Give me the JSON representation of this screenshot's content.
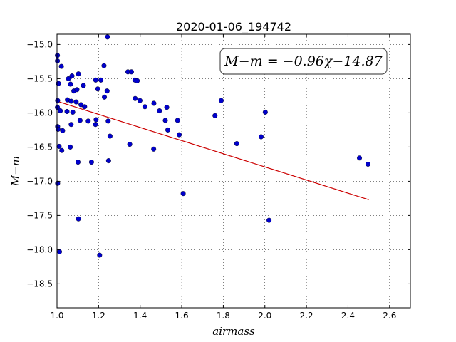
{
  "chart_data": {
    "type": "scatter",
    "title": "2020-01-06_194742",
    "xlabel": "airmass",
    "ylabel": "M−m",
    "xlim": [
      1.0,
      2.7
    ],
    "ylim": [
      -18.85,
      -14.85
    ],
    "y_inverted": true,
    "grid": true,
    "x_ticks": [
      "1.0",
      "1.2",
      "1.4",
      "1.6",
      "1.8",
      "2.0",
      "2.2",
      "2.4",
      "2.6"
    ],
    "y_ticks": [
      "−15.0",
      "−15.5",
      "−16.0",
      "−16.5",
      "−17.0",
      "−17.5",
      "−18.0",
      "−18.5"
    ],
    "annotation": "M−m = −0.96χ−14.87",
    "fit": {
      "slope": -0.96,
      "intercept": -14.87,
      "x_range": [
        1.0,
        2.5
      ],
      "color": "#cc0000"
    },
    "point_color": "#0000cc",
    "points": [
      [
        1.243,
        -14.89
      ],
      [
        1.002,
        -15.16
      ],
      [
        1.002,
        -15.24
      ],
      [
        1.021,
        -15.32
      ],
      [
        1.226,
        -15.31
      ],
      [
        1.341,
        -15.4
      ],
      [
        1.358,
        -15.4
      ],
      [
        1.103,
        -15.43
      ],
      [
        1.072,
        -15.46
      ],
      [
        1.055,
        -15.5
      ],
      [
        1.007,
        -15.57
      ],
      [
        1.065,
        -15.58
      ],
      [
        1.127,
        -15.6
      ],
      [
        1.186,
        -15.52
      ],
      [
        1.211,
        -15.52
      ],
      [
        1.375,
        -15.52
      ],
      [
        1.386,
        -15.53
      ],
      [
        1.241,
        -15.68
      ],
      [
        1.081,
        -15.68
      ],
      [
        1.096,
        -15.66
      ],
      [
        1.196,
        -15.65
      ],
      [
        1.228,
        -15.77
      ],
      [
        1.003,
        -15.82
      ],
      [
        1.05,
        -15.81
      ],
      [
        1.068,
        -15.83
      ],
      [
        1.092,
        -15.84
      ],
      [
        1.376,
        -15.79
      ],
      [
        1.79,
        -15.82
      ],
      [
        1.399,
        -15.82
      ],
      [
        1.466,
        -15.86
      ],
      [
        1.002,
        -15.92
      ],
      [
        1.115,
        -15.88
      ],
      [
        1.133,
        -15.91
      ],
      [
        1.423,
        -15.91
      ],
      [
        1.528,
        -15.92
      ],
      [
        1.016,
        -15.97
      ],
      [
        1.048,
        -15.98
      ],
      [
        1.076,
        -15.99
      ],
      [
        1.493,
        -15.97
      ],
      [
        2.002,
        -15.99
      ],
      [
        1.76,
        -16.04
      ],
      [
        1.111,
        -16.11
      ],
      [
        1.15,
        -16.12
      ],
      [
        1.188,
        -16.1
      ],
      [
        1.246,
        -16.12
      ],
      [
        1.521,
        -16.11
      ],
      [
        1.58,
        -16.11
      ],
      [
        1.068,
        -16.17
      ],
      [
        1.185,
        -16.17
      ],
      [
        1.003,
        -16.2
      ],
      [
        1.005,
        -16.24
      ],
      [
        1.027,
        -16.26
      ],
      [
        1.533,
        -16.25
      ],
      [
        1.588,
        -16.32
      ],
      [
        1.255,
        -16.34
      ],
      [
        1.982,
        -16.35
      ],
      [
        1.01,
        -16.49
      ],
      [
        1.064,
        -16.5
      ],
      [
        1.865,
        -16.45
      ],
      [
        1.023,
        -16.55
      ],
      [
        1.35,
        -16.46
      ],
      [
        1.465,
        -16.53
      ],
      [
        2.455,
        -16.66
      ],
      [
        2.496,
        -16.75
      ],
      [
        1.101,
        -16.72
      ],
      [
        1.166,
        -16.72
      ],
      [
        1.248,
        -16.7
      ],
      [
        1.003,
        -17.03
      ],
      [
        1.607,
        -17.18
      ],
      [
        1.103,
        -17.55
      ],
      [
        2.02,
        -17.57
      ],
      [
        1.012,
        -18.03
      ],
      [
        1.205,
        -18.08
      ]
    ]
  }
}
